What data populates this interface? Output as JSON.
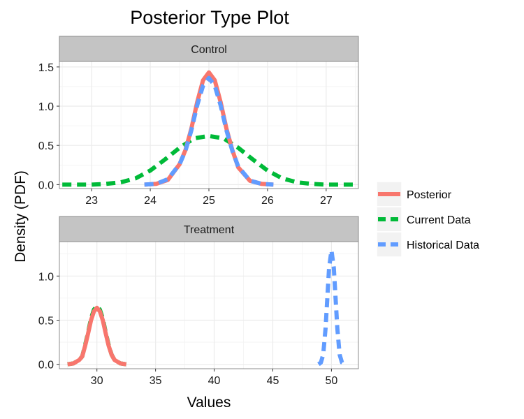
{
  "chart_data": {
    "type": "line",
    "title": "Posterior Type Plot",
    "xlabel": "Values",
    "ylabel": "Density (PDF)",
    "legend": {
      "placement": "right",
      "entries": [
        {
          "name": "Posterior",
          "color": "#F8766D",
          "dash": "solid"
        },
        {
          "name": "Current Data",
          "color": "#00BA38",
          "dash": "dashed"
        },
        {
          "name": "Historical Data",
          "color": "#619CFF",
          "dash": "dashed"
        }
      ]
    },
    "grid": true,
    "panels": [
      {
        "label": "Control",
        "xlim": [
          22.45,
          27.55
        ],
        "ylim": [
          -0.05,
          1.57
        ],
        "xticks": [
          23,
          24,
          25,
          26,
          27
        ],
        "yticks": [
          0.0,
          0.5,
          1.0,
          1.5
        ],
        "ytick_labels": [
          "0.0",
          "0.5",
          "1.0",
          "1.5"
        ],
        "series": [
          {
            "name": "Current Data",
            "x": [
              22.5,
              22.75,
              23.0,
              23.25,
              23.5,
              23.75,
              24.0,
              24.25,
              24.5,
              24.75,
              25.0,
              25.25,
              25.5,
              25.75,
              26.0,
              26.25,
              26.5,
              26.75,
              27.0,
              27.25,
              27.5
            ],
            "y": [
              0.0,
              0.0,
              0.0,
              0.01,
              0.03,
              0.08,
              0.18,
              0.32,
              0.47,
              0.59,
              0.62,
              0.59,
              0.47,
              0.32,
              0.18,
              0.08,
              0.03,
              0.01,
              0.0,
              0.0,
              0.0
            ]
          },
          {
            "name": "Posterior",
            "x": [
              23.9,
              24.1,
              24.3,
              24.5,
              24.6,
              24.7,
              24.8,
              24.9,
              25.0,
              25.1,
              25.2,
              25.3,
              25.4,
              25.5,
              25.7,
              25.9,
              26.1
            ],
            "y": [
              0.0,
              0.01,
              0.06,
              0.26,
              0.44,
              0.71,
              1.05,
              1.33,
              1.43,
              1.33,
              1.05,
              0.71,
              0.44,
              0.22,
              0.05,
              0.01,
              0.0
            ]
          },
          {
            "name": "Historical Data",
            "x": [
              23.9,
              24.1,
              24.3,
              24.5,
              24.6,
              24.7,
              24.8,
              24.9,
              25.0,
              25.1,
              25.2,
              25.3,
              25.4,
              25.5,
              25.7,
              25.9,
              26.1
            ],
            "y": [
              0.0,
              0.01,
              0.07,
              0.26,
              0.43,
              0.69,
              1.01,
              1.26,
              1.36,
              1.26,
              1.01,
              0.69,
              0.43,
              0.23,
              0.05,
              0.01,
              0.0
            ]
          }
        ]
      },
      {
        "label": "Treatment",
        "xlim": [
          26.8,
          52.3
        ],
        "ylim": [
          -0.05,
          1.39
        ],
        "xticks": [
          30,
          35,
          40,
          45,
          50
        ],
        "yticks": [
          0.0,
          0.5,
          1.0
        ],
        "ytick_labels": [
          "0.0",
          "0.5",
          "1.0"
        ],
        "series": [
          {
            "name": "Posterior",
            "x": [
              27.5,
              28.0,
              28.5,
              28.75,
              29.0,
              29.25,
              29.5,
              29.75,
              30.0,
              30.25,
              30.5,
              30.75,
              31.0,
              31.25,
              31.5,
              32.0,
              32.5
            ],
            "y": [
              0.0,
              0.01,
              0.05,
              0.09,
              0.21,
              0.35,
              0.5,
              0.6,
              0.64,
              0.6,
              0.5,
              0.35,
              0.21,
              0.11,
              0.05,
              0.01,
              0.0
            ]
          },
          {
            "name": "Current Data",
            "x": [
              27.5,
              28.0,
              28.5,
              28.75,
              29.0,
              29.25,
              29.5,
              29.75,
              30.0,
              30.25,
              30.5,
              30.75,
              31.0,
              31.25,
              31.5,
              32.0,
              32.5
            ],
            "y": [
              0.0,
              0.01,
              0.05,
              0.09,
              0.22,
              0.36,
              0.52,
              0.62,
              0.66,
              0.62,
              0.52,
              0.36,
              0.22,
              0.11,
              0.05,
              0.01,
              0.0
            ]
          },
          {
            "name": "Historical Data",
            "x": [
              48.9,
              49.1,
              49.3,
              49.5,
              49.65,
              49.8,
              50.0,
              50.2,
              50.35,
              50.5,
              50.7,
              50.9,
              51.1
            ],
            "y": [
              0.0,
              0.02,
              0.11,
              0.41,
              0.75,
              1.09,
              1.29,
              1.09,
              0.75,
              0.41,
              0.11,
              0.02,
              0.0
            ]
          }
        ]
      }
    ]
  }
}
